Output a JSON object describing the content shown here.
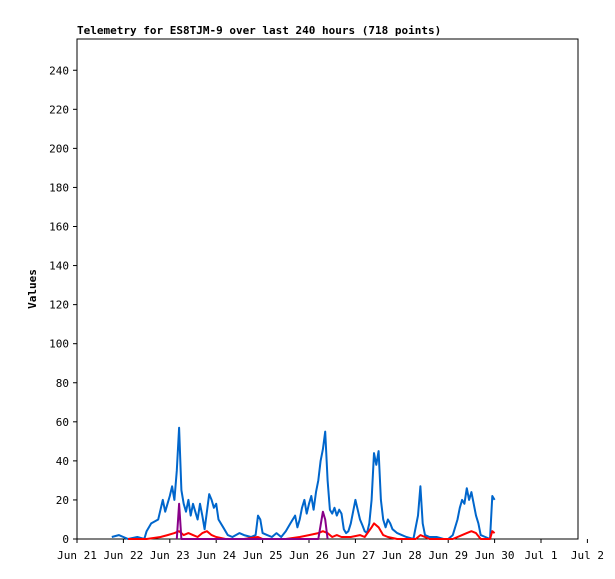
{
  "chart_data": {
    "type": "line",
    "title": "Telemetry for ES8TJM-9 over last 240 hours (718 points)",
    "xlabel": "",
    "ylabel": "Values",
    "ylim": [
      0,
      256
    ],
    "yticks": [
      0,
      20,
      40,
      60,
      80,
      100,
      120,
      140,
      160,
      180,
      200,
      220,
      240
    ],
    "xticks": [
      "Jun 21",
      "Jun 22",
      "Jun 23",
      "Jun 24",
      "Jun 25",
      "Jun 26",
      "Jun 27",
      "Jun 28",
      "Jun 29",
      "Jun 30",
      "Jul 1",
      "Jul 2"
    ],
    "xlim_days": [
      0,
      10.8
    ],
    "grid": false,
    "legend": "none",
    "series": [
      {
        "color": "#0066cc",
        "points": [
          [
            0.75,
            1
          ],
          [
            0.9,
            2
          ],
          [
            1.0,
            1
          ],
          [
            1.1,
            0
          ],
          [
            1.3,
            1
          ],
          [
            1.45,
            0
          ],
          [
            1.5,
            4
          ],
          [
            1.6,
            8
          ],
          [
            1.75,
            10
          ],
          [
            1.8,
            15
          ],
          [
            1.85,
            20
          ],
          [
            1.9,
            14
          ],
          [
            1.95,
            18
          ],
          [
            2.0,
            22
          ],
          [
            2.05,
            27
          ],
          [
            2.1,
            20
          ],
          [
            2.15,
            35
          ],
          [
            2.2,
            57
          ],
          [
            2.25,
            25
          ],
          [
            2.3,
            18
          ],
          [
            2.35,
            14
          ],
          [
            2.4,
            20
          ],
          [
            2.45,
            12
          ],
          [
            2.5,
            18
          ],
          [
            2.55,
            14
          ],
          [
            2.6,
            10
          ],
          [
            2.65,
            18
          ],
          [
            2.7,
            12
          ],
          [
            2.75,
            5
          ],
          [
            2.8,
            14
          ],
          [
            2.85,
            23
          ],
          [
            2.9,
            20
          ],
          [
            2.95,
            16
          ],
          [
            3.0,
            18
          ],
          [
            3.05,
            10
          ],
          [
            3.15,
            6
          ],
          [
            3.25,
            2
          ],
          [
            3.35,
            1
          ],
          [
            3.5,
            3
          ],
          [
            3.6,
            2
          ],
          [
            3.75,
            1
          ],
          [
            3.85,
            2
          ],
          [
            3.9,
            12
          ],
          [
            3.95,
            10
          ],
          [
            4.0,
            3
          ],
          [
            4.1,
            2
          ],
          [
            4.2,
            1
          ],
          [
            4.3,
            3
          ],
          [
            4.4,
            1
          ],
          [
            4.5,
            4
          ],
          [
            4.6,
            8
          ],
          [
            4.7,
            12
          ],
          [
            4.75,
            6
          ],
          [
            4.8,
            10
          ],
          [
            4.85,
            16
          ],
          [
            4.9,
            20
          ],
          [
            4.95,
            13
          ],
          [
            5.0,
            18
          ],
          [
            5.05,
            22
          ],
          [
            5.1,
            15
          ],
          [
            5.15,
            24
          ],
          [
            5.2,
            30
          ],
          [
            5.25,
            40
          ],
          [
            5.3,
            46
          ],
          [
            5.35,
            55
          ],
          [
            5.4,
            30
          ],
          [
            5.45,
            15
          ],
          [
            5.5,
            13
          ],
          [
            5.55,
            16
          ],
          [
            5.6,
            12
          ],
          [
            5.65,
            15
          ],
          [
            5.7,
            13
          ],
          [
            5.75,
            5
          ],
          [
            5.8,
            3
          ],
          [
            5.85,
            4
          ],
          [
            5.9,
            8
          ],
          [
            5.95,
            14
          ],
          [
            6.0,
            20
          ],
          [
            6.05,
            15
          ],
          [
            6.1,
            10
          ],
          [
            6.15,
            7
          ],
          [
            6.2,
            4
          ],
          [
            6.25,
            3
          ],
          [
            6.3,
            8
          ],
          [
            6.35,
            20
          ],
          [
            6.4,
            44
          ],
          [
            6.45,
            38
          ],
          [
            6.5,
            45
          ],
          [
            6.55,
            20
          ],
          [
            6.6,
            10
          ],
          [
            6.65,
            6
          ],
          [
            6.7,
            10
          ],
          [
            6.75,
            8
          ],
          [
            6.8,
            5
          ],
          [
            6.9,
            3
          ],
          [
            7.0,
            2
          ],
          [
            7.1,
            1
          ],
          [
            7.25,
            0
          ],
          [
            7.35,
            12
          ],
          [
            7.4,
            27
          ],
          [
            7.45,
            8
          ],
          [
            7.5,
            2
          ],
          [
            7.6,
            1
          ],
          [
            7.75,
            1
          ],
          [
            7.9,
            0
          ],
          [
            8.0,
            0
          ],
          [
            8.1,
            2
          ],
          [
            8.2,
            10
          ],
          [
            8.25,
            16
          ],
          [
            8.3,
            20
          ],
          [
            8.35,
            18
          ],
          [
            8.4,
            26
          ],
          [
            8.45,
            20
          ],
          [
            8.5,
            24
          ],
          [
            8.55,
            18
          ],
          [
            8.6,
            12
          ],
          [
            8.65,
            8
          ],
          [
            8.7,
            2
          ],
          [
            8.8,
            1
          ],
          [
            8.9,
            0
          ],
          [
            8.95,
            22
          ],
          [
            9.0,
            20
          ]
        ]
      },
      {
        "color": "#ff0000",
        "points": [
          [
            1.1,
            0
          ],
          [
            1.5,
            0
          ],
          [
            1.8,
            1
          ],
          [
            1.95,
            2
          ],
          [
            2.1,
            3
          ],
          [
            2.2,
            4
          ],
          [
            2.3,
            2
          ],
          [
            2.4,
            3
          ],
          [
            2.5,
            2
          ],
          [
            2.6,
            1
          ],
          [
            2.7,
            3
          ],
          [
            2.8,
            4
          ],
          [
            2.9,
            2
          ],
          [
            3.0,
            1
          ],
          [
            3.2,
            0
          ],
          [
            3.6,
            0
          ],
          [
            3.9,
            1
          ],
          [
            4.0,
            0
          ],
          [
            4.5,
            0
          ],
          [
            4.8,
            1
          ],
          [
            5.0,
            2
          ],
          [
            5.2,
            3
          ],
          [
            5.3,
            4
          ],
          [
            5.4,
            3
          ],
          [
            5.5,
            1
          ],
          [
            5.6,
            2
          ],
          [
            5.7,
            1
          ],
          [
            5.9,
            1
          ],
          [
            6.1,
            2
          ],
          [
            6.2,
            1
          ],
          [
            6.35,
            6
          ],
          [
            6.4,
            8
          ],
          [
            6.5,
            6
          ],
          [
            6.6,
            2
          ],
          [
            6.7,
            1
          ],
          [
            6.9,
            0
          ],
          [
            7.3,
            0
          ],
          [
            7.4,
            2
          ],
          [
            7.5,
            1
          ],
          [
            7.6,
            0
          ],
          [
            8.1,
            0
          ],
          [
            8.3,
            2
          ],
          [
            8.4,
            3
          ],
          [
            8.5,
            4
          ],
          [
            8.6,
            3
          ],
          [
            8.7,
            0
          ],
          [
            8.9,
            0
          ],
          [
            8.95,
            4
          ],
          [
            9.0,
            3
          ]
        ]
      },
      {
        "color": "#880088",
        "points": [
          [
            2.15,
            0
          ],
          [
            2.2,
            18
          ],
          [
            2.25,
            0
          ],
          [
            5.2,
            0
          ],
          [
            5.25,
            7
          ],
          [
            5.3,
            14
          ],
          [
            5.35,
            10
          ],
          [
            5.4,
            0
          ]
        ]
      }
    ]
  }
}
